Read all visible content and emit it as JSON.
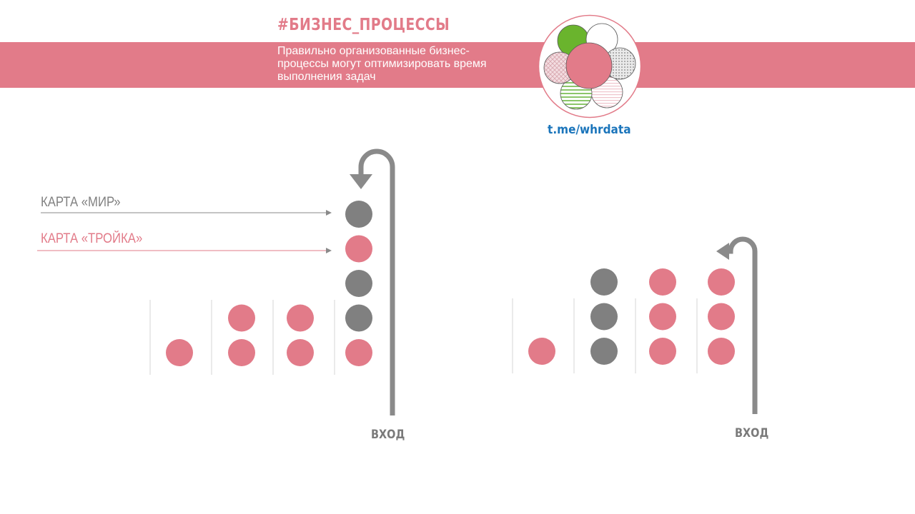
{
  "header": {
    "hashtag": "#БИЗНЕС_ПРОЦЕССЫ",
    "subtitle": "Правильно организованные бизнес-процессы могут оптимизировать время выполнения задач",
    "link": "t.me/whrdata"
  },
  "colors": {
    "accent": "#e27b89",
    "gray": "#808080",
    "link": "#1b75bb",
    "divider": "#d4d4d4",
    "logo_green": "#6ab42d"
  },
  "legend": {
    "mir_label": "КАРТА «МИР»",
    "troika_label": "КАРТА «ТРОЙКА»"
  },
  "diagrams": [
    {
      "entry_label": "ВХОД",
      "columns": [
        [
          "pink"
        ],
        [
          "pink",
          "pink"
        ],
        [
          "pink",
          "pink"
        ],
        [
          "pink",
          "gray",
          "gray",
          "pink",
          "gray"
        ]
      ]
    },
    {
      "entry_label": "ВХОД",
      "columns": [
        [
          "pink"
        ],
        [
          "gray",
          "gray",
          "gray"
        ],
        [
          "pink",
          "pink",
          "pink"
        ],
        [
          "pink",
          "pink",
          "pink"
        ]
      ]
    }
  ]
}
